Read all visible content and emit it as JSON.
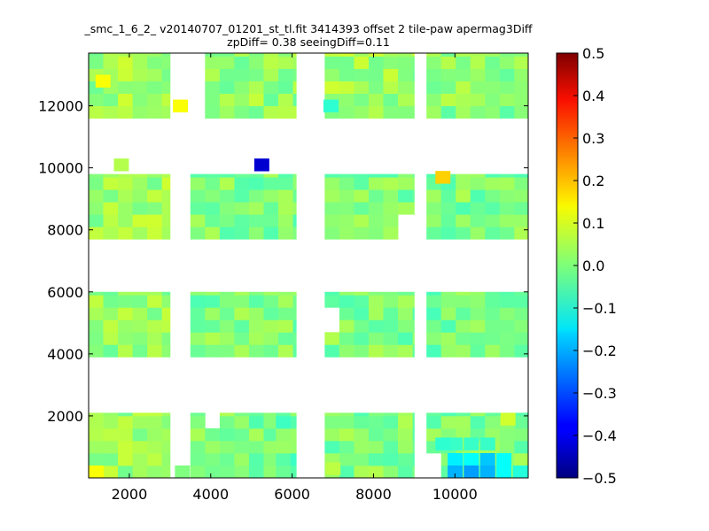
{
  "chart_data": {
    "type": "heatmap",
    "title": "_smc_1_6_2_ v20140707_01201_st_tl.fit 3414393 offset 2 tile-paw apermag3Diff",
    "subtitle": "zpDiff= 0.38 seeingDiff=0.11",
    "xlabel": "",
    "ylabel": "",
    "xlim": [
      1000,
      11800
    ],
    "ylim": [
      0,
      13700
    ],
    "xticks": [
      "2000",
      "4000",
      "6000",
      "8000",
      "10000"
    ],
    "yticks": [
      "2000",
      "4000",
      "6000",
      "8000",
      "10000",
      "12000"
    ],
    "colorbar": {
      "range": [
        -0.5,
        0.5
      ],
      "colormap": "jet",
      "ticks": [
        "0.5",
        "0.4",
        "0.3",
        "0.2",
        "0.1",
        "0.0",
        "−0.1",
        "−0.2",
        "−0.3",
        "−0.4",
        "−0.5"
      ]
    },
    "grid": false,
    "cell_size": [
      360,
      400
    ],
    "chips": [
      {
        "x0": 1000,
        "x1": 3000,
        "y0": 0,
        "y1": 2100,
        "value": 0.03
      },
      {
        "x0": 3500,
        "x1": 5600,
        "y0": 0,
        "y1": 2100,
        "value": 0.0
      },
      {
        "x0": 5600,
        "x1": 6100,
        "y0": 0,
        "y1": 2100,
        "value": -0.02
      },
      {
        "x0": 6800,
        "x1": 9000,
        "y0": 0,
        "y1": 2100,
        "value": 0.0
      },
      {
        "x0": 9300,
        "x1": 11800,
        "y0": 0,
        "y1": 2100,
        "value": 0.0
      },
      {
        "x0": 1000,
        "x1": 3000,
        "y0": 3900,
        "y1": 6000,
        "value": 0.02
      },
      {
        "x0": 3500,
        "x1": 6100,
        "y0": 3900,
        "y1": 6000,
        "value": 0.0
      },
      {
        "x0": 6800,
        "x1": 9000,
        "y0": 3900,
        "y1": 6000,
        "value": 0.0
      },
      {
        "x0": 9300,
        "x1": 11800,
        "y0": 3900,
        "y1": 6000,
        "value": -0.01
      },
      {
        "x0": 1000,
        "x1": 3000,
        "y0": 7700,
        "y1": 9800,
        "value": 0.03
      },
      {
        "x0": 3500,
        "x1": 6100,
        "y0": 7700,
        "y1": 9800,
        "value": 0.0
      },
      {
        "x0": 6800,
        "x1": 9000,
        "y0": 7700,
        "y1": 9800,
        "value": 0.0
      },
      {
        "x0": 9300,
        "x1": 11800,
        "y0": 7700,
        "y1": 9800,
        "value": 0.0
      },
      {
        "x0": 1000,
        "x1": 3000,
        "y0": 11600,
        "y1": 13700,
        "value": 0.03
      },
      {
        "x0": 3500,
        "x1": 6100,
        "y0": 11600,
        "y1": 13700,
        "value": 0.02
      },
      {
        "x0": 6800,
        "x1": 9000,
        "y0": 11600,
        "y1": 13700,
        "value": 0.03
      },
      {
        "x0": 9300,
        "x1": 11800,
        "y0": 11600,
        "y1": 13700,
        "value": 0.01
      }
    ],
    "holes": [
      {
        "x0": 3500,
        "x1": 3800,
        "y0": 11600,
        "y1": 13700
      },
      {
        "x0": 6800,
        "x1": 7100,
        "y0": 4900,
        "y1": 5500
      },
      {
        "x0": 8700,
        "x1": 9300,
        "y0": 7700,
        "y1": 8500
      },
      {
        "x0": 9000,
        "x1": 9300,
        "y0": 3900,
        "y1": 4900
      },
      {
        "x0": 9000,
        "x1": 9300,
        "y0": 0,
        "y1": 1300
      },
      {
        "x0": 3800,
        "x1": 4100,
        "y0": 1800,
        "y1": 2100
      },
      {
        "x0": 9300,
        "x1": 9600,
        "y0": 0,
        "y1": 900
      }
    ],
    "highlights": [
      {
        "x": 1350,
        "y": 12800,
        "value": 0.12
      },
      {
        "x": 3250,
        "y": 12000,
        "value": 0.12
      },
      {
        "x": 1800,
        "y": 10100,
        "value": 0.05
      },
      {
        "x": 5250,
        "y": 10100,
        "value": -0.42
      },
      {
        "x": 9700,
        "y": 9700,
        "value": 0.17
      },
      {
        "x": 1180,
        "y": 200,
        "value": 0.12
      },
      {
        "x": 10000,
        "y": 1100,
        "value": -0.07
      },
      {
        "x": 10400,
        "y": 1100,
        "value": -0.07
      },
      {
        "x": 10800,
        "y": 1100,
        "value": -0.07
      },
      {
        "x": 9700,
        "y": 1100,
        "value": -0.08
      },
      {
        "x": 10000,
        "y": 600,
        "value": -0.14
      },
      {
        "x": 10400,
        "y": 600,
        "value": -0.12
      },
      {
        "x": 10800,
        "y": 600,
        "value": -0.18
      },
      {
        "x": 11200,
        "y": 600,
        "value": -0.12
      },
      {
        "x": 10000,
        "y": 200,
        "value": -0.2
      },
      {
        "x": 10400,
        "y": 200,
        "value": -0.22
      },
      {
        "x": 10800,
        "y": 200,
        "value": -0.2
      },
      {
        "x": 11200,
        "y": 200,
        "value": -0.12
      },
      {
        "x": 11600,
        "y": 200,
        "value": -0.09
      },
      {
        "x": 11300,
        "y": 1900,
        "value": 0.08
      },
      {
        "x": 6950,
        "y": 12000,
        "value": -0.08
      },
      {
        "x": 7000,
        "y": 300,
        "value": 0.06
      },
      {
        "x": 3300,
        "y": 200,
        "value": 0.0
      }
    ]
  }
}
